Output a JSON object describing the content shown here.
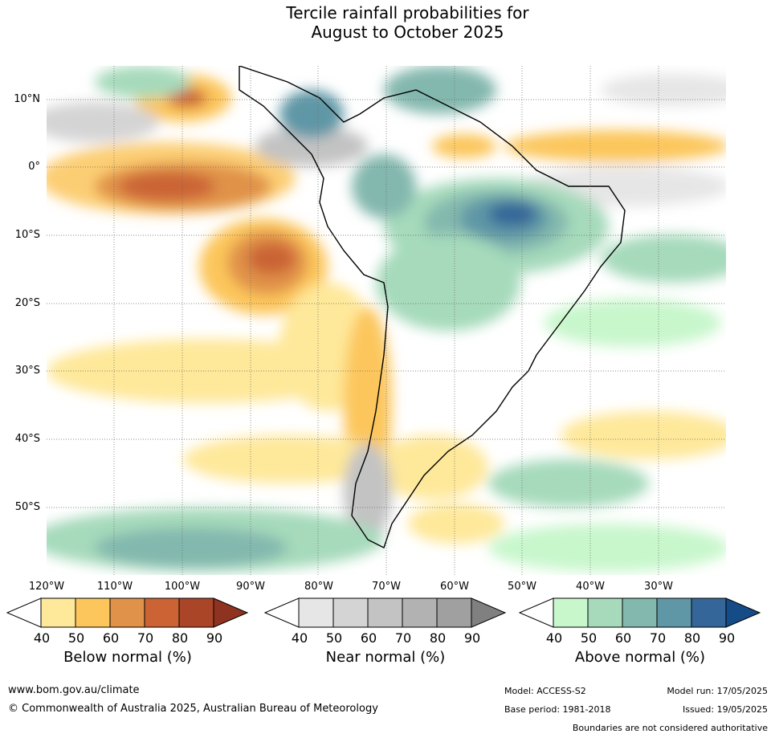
{
  "title_line1": "Tercile rainfall probabilities for",
  "title_line2": "August to October 2025",
  "latitude_labels": [
    "10°N",
    "0°",
    "10°S",
    "20°S",
    "30°S",
    "40°S",
    "50°S"
  ],
  "longitude_labels": [
    "120°W",
    "110°W",
    "100°W",
    "90°W",
    "80°W",
    "70°W",
    "60°W",
    "50°W",
    "40°W",
    "30°W"
  ],
  "colorbars": [
    {
      "name": "below-normal",
      "title": "Below normal (%)",
      "ticks": [
        "40",
        "50",
        "60",
        "70",
        "80",
        "90"
      ],
      "colors": [
        "#fee89a",
        "#fcc65c",
        "#e0924a",
        "#cb6334",
        "#ab4527",
        "#8f3320"
      ]
    },
    {
      "name": "near-normal",
      "title": "Near normal (%)",
      "ticks": [
        "40",
        "50",
        "60",
        "70",
        "80",
        "90"
      ],
      "colors": [
        "#e6e6e6",
        "#d4d4d4",
        "#c3c3c3",
        "#b2b2b2",
        "#a0a0a0",
        "#808080"
      ]
    },
    {
      "name": "above-normal",
      "title": "Above normal (%)",
      "ticks": [
        "40",
        "50",
        "60",
        "70",
        "80",
        "90"
      ],
      "colors": [
        "#c8f7cc",
        "#a6dabb",
        "#83b8ae",
        "#5f97a6",
        "#356699",
        "#154b86"
      ]
    }
  ],
  "footer": {
    "website": "www.bom.gov.au/climate",
    "copyright": "© Commonwealth of Australia 2025, Australian Bureau of Meteorology",
    "model": "Model: ACCESS-S2",
    "base_period": "Base period: 1981-2018",
    "model_run": "Model run: 17/05/2025",
    "issued": "Issued: 19/05/2025",
    "disclaimer": "Boundaries are not considered authoritative"
  }
}
